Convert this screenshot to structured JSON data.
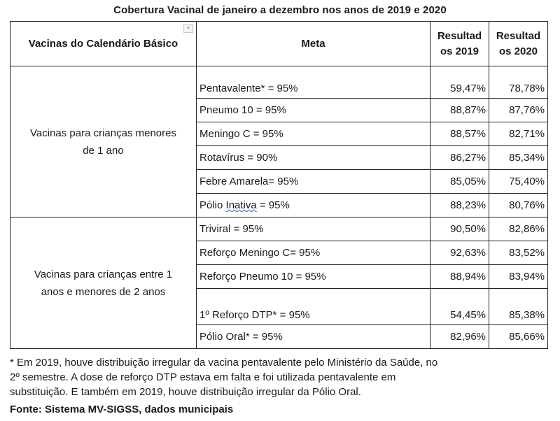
{
  "title": "Cobertura Vacinal de janeiro a dezembro nos anos de 2019 e 2020",
  "headers": {
    "vaccines": "Vacinas do Calendário Básico",
    "meta": "Meta",
    "res2019_line1": "Resultad",
    "res2019_line2": "os 2019",
    "res2020_line1": "Resultad",
    "res2020_line2": "os 2020"
  },
  "groups": [
    {
      "label_line1": "Vacinas para crianças menores",
      "label_line2": "de 1 ano",
      "rows": [
        {
          "meta": "Pentavalente* = 95%",
          "r2019": "59,47%",
          "r2020": "78,78%"
        },
        {
          "meta": "Pneumo 10 = 95%",
          "r2019": "88,87%",
          "r2020": "87,76%"
        },
        {
          "meta": "Meningo C = 95%",
          "r2019": "88,57%",
          "r2020": "82,71%"
        },
        {
          "meta": "Rotavírus = 90%",
          "r2019": "86,27%",
          "r2020": "85,34%"
        },
        {
          "meta": "Febre Amarela= 95%",
          "r2019": "85,05%",
          "r2020": "75,40%"
        },
        {
          "meta_a": "Pólio ",
          "meta_b": "Inativa",
          "meta_c": " = 95%",
          "r2019": "88,23%",
          "r2020": "80,76%"
        }
      ]
    },
    {
      "label_line1": "Vacinas para crianças entre 1",
      "label_line2": "anos e menores de 2 anos",
      "rows": [
        {
          "meta": "Triviral = 95%",
          "r2019": "90,50%",
          "r2020": "82,86%"
        },
        {
          "meta": "Reforço Meningo C= 95%",
          "r2019": "92,63%",
          "r2020": "83,52%"
        },
        {
          "meta": "Reforço Pneumo 10 = 95%",
          "r2019": "88,94%",
          "r2020": "83,94%"
        },
        {
          "meta": "1º Reforço DTP* = 95%",
          "r2019": "54,45%",
          "r2020": "85,38%"
        },
        {
          "meta": "Pólio Oral* = 95%",
          "r2019": "82,96%",
          "r2020": "85,66%"
        }
      ]
    }
  ],
  "note_line1": "* Em 2019, houve distribuição irregular da vacina pentavalente pelo Ministério da Saúde, no",
  "note_line2": "2º semestre. A dose de reforço DTP estava em falta e foi utilizada pentavalente em",
  "note_line3": "substituição.  E também em 2019, houve distribuição irregular da Pólio Oral.",
  "source": "Fonte: Sistema MV-SIGSS, dados municipais",
  "colors": {
    "border": "#222222",
    "text": "#1a1a1a",
    "spellcheck": "#2b5fcf"
  }
}
